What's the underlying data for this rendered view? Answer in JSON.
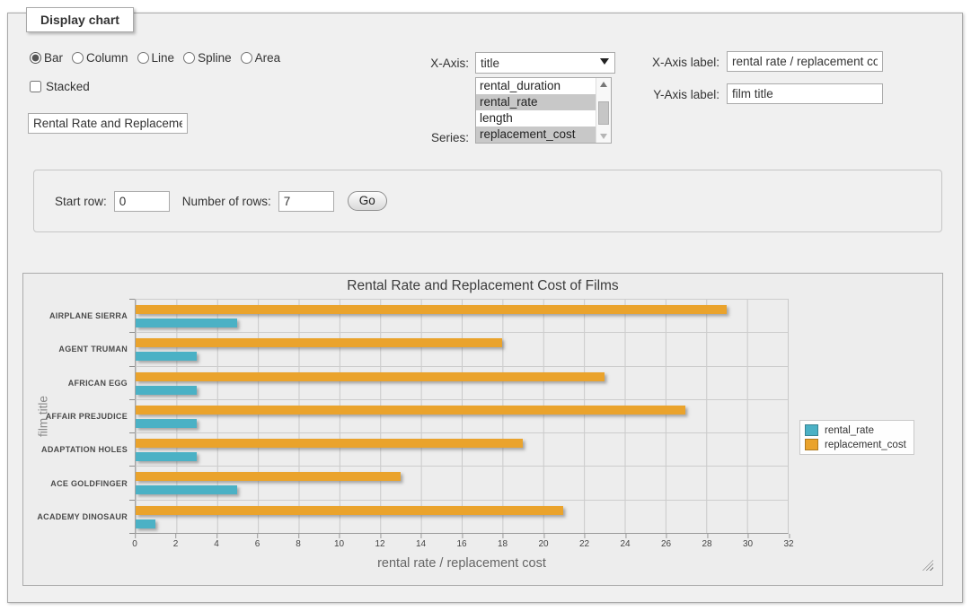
{
  "panel": {
    "legend": "Display chart"
  },
  "form": {
    "chart_types": [
      {
        "label": "Bar",
        "selected": true
      },
      {
        "label": "Column",
        "selected": false
      },
      {
        "label": "Line",
        "selected": false
      },
      {
        "label": "Spline",
        "selected": false
      },
      {
        "label": "Area",
        "selected": false
      }
    ],
    "stacked": {
      "label": "Stacked",
      "checked": false
    },
    "title_input": {
      "value": "Rental Rate and Replacement Cost of Films"
    },
    "x_axis": {
      "label": "X-Axis:",
      "selected_value": "title"
    },
    "series": {
      "label": "Series:",
      "options": [
        {
          "label": "rental_duration",
          "selected": false
        },
        {
          "label": "rental_rate",
          "selected": true
        },
        {
          "label": "length",
          "selected": false
        },
        {
          "label": "replacement_cost",
          "selected": true
        }
      ]
    },
    "x_axis_label": {
      "label": "X-Axis label:",
      "value": "rental rate / replacement cost"
    },
    "y_axis_label": {
      "label": "Y-Axis label:",
      "value": "film title"
    }
  },
  "rows_panel": {
    "start_row_label": "Start row:",
    "start_row_value": "0",
    "num_rows_label": "Number of rows:",
    "num_rows_value": "7",
    "go_label": "Go"
  },
  "chart_data": {
    "type": "bar",
    "orientation": "horizontal",
    "title": "Rental Rate and Replacement Cost of Films",
    "xlabel": "rental rate / replacement cost",
    "ylabel": "film title",
    "categories": [
      "AIRPLANE SIERRA",
      "AGENT TRUMAN",
      "AFRICAN EGG",
      "AFFAIR PREJUDICE",
      "ADAPTATION HOLES",
      "ACE GOLDFINGER",
      "ACADEMY DINOSAUR"
    ],
    "series": [
      {
        "name": "rental_rate",
        "color": "#4BB1C5",
        "values": [
          4.99,
          2.99,
          2.99,
          2.99,
          2.99,
          4.99,
          0.99
        ]
      },
      {
        "name": "replacement_cost",
        "color": "#EAA32C",
        "values": [
          28.99,
          17.99,
          22.99,
          26.99,
          18.99,
          12.99,
          20.99
        ]
      }
    ],
    "xlim": [
      0,
      32
    ],
    "xticks": [
      0,
      2,
      4,
      6,
      8,
      10,
      12,
      14,
      16,
      18,
      20,
      22,
      24,
      26,
      28,
      30,
      32
    ],
    "grid": true,
    "legend_position": "right"
  }
}
